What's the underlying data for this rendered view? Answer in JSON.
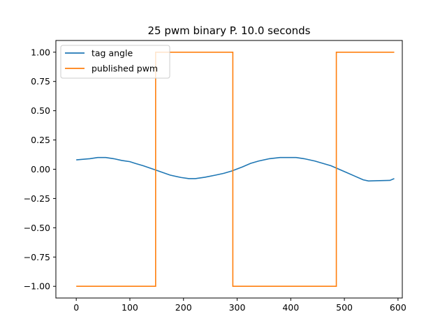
{
  "chart_data": {
    "type": "line",
    "title": "25 pwm binary P. 10.0 seconds",
    "xlabel": "",
    "ylabel": "",
    "xlim": [
      -38,
      608
    ],
    "ylim": [
      -1.1,
      1.1
    ],
    "xticks": [
      0,
      100,
      200,
      300,
      400,
      500,
      600
    ],
    "yticks": [
      -1.0,
      -0.75,
      -0.5,
      -0.25,
      0.0,
      0.25,
      0.5,
      0.75,
      1.0
    ],
    "xtick_labels": [
      "0",
      "100",
      "200",
      "300",
      "400",
      "500",
      "600"
    ],
    "ytick_labels": [
      "−1.00",
      "−0.75",
      "−0.50",
      "−0.25",
      "0.00",
      "0.25",
      "0.50",
      "0.75",
      "1.00"
    ],
    "grid": false,
    "legend_position": "top-left",
    "series": [
      {
        "name": "tag angle",
        "color": "#1f77b4",
        "x": [
          0,
          25,
          40,
          55,
          70,
          85,
          100,
          110,
          125,
          150,
          175,
          195,
          210,
          222,
          240,
          260,
          275,
          290,
          310,
          325,
          340,
          360,
          380,
          395,
          410,
          425,
          445,
          460,
          475,
          490,
          505,
          520,
          535,
          545,
          560,
          585,
          593
        ],
        "y": [
          0.08,
          0.09,
          0.1,
          0.1,
          0.09,
          0.075,
          0.065,
          0.05,
          0.03,
          -0.01,
          -0.05,
          -0.07,
          -0.08,
          -0.08,
          -0.068,
          -0.05,
          -0.035,
          -0.015,
          0.02,
          0.05,
          0.07,
          0.09,
          0.1,
          0.1,
          0.1,
          0.09,
          0.07,
          0.05,
          0.03,
          0.0,
          -0.03,
          -0.06,
          -0.09,
          -0.1,
          -0.098,
          -0.095,
          -0.08
        ]
      },
      {
        "name": "published pwm",
        "color": "#ff7f0e",
        "x": [
          0,
          148,
          148,
          292,
          292,
          485,
          485,
          593
        ],
        "y": [
          -1,
          -1,
          1,
          1,
          -1,
          -1,
          1,
          1
        ]
      }
    ]
  }
}
